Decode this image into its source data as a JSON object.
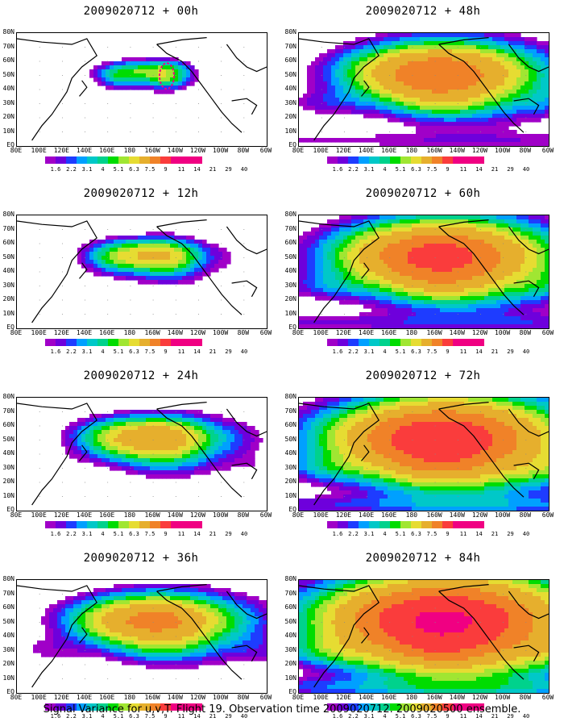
{
  "panels": [
    {
      "title": "2009020712 + 00h",
      "intensity": 0
    },
    {
      "title": "2009020712 + 48h",
      "intensity": 4
    },
    {
      "title": "2009020712 + 12h",
      "intensity": 1
    },
    {
      "title": "2009020712 + 60h",
      "intensity": 5
    },
    {
      "title": "2009020712 + 24h",
      "intensity": 2
    },
    {
      "title": "2009020712 + 72h",
      "intensity": 6
    },
    {
      "title": "2009020712 + 36h",
      "intensity": 3
    },
    {
      "title": "2009020712 + 84h",
      "intensity": 7
    }
  ],
  "latitude_labels": [
    "80N",
    "70N",
    "60N",
    "50N",
    "40N",
    "30N",
    "20N",
    "10N",
    "EQ"
  ],
  "longitude_labels": [
    "80E",
    "100E",
    "120E",
    "140E",
    "160E",
    "180",
    "160W",
    "140W",
    "120W",
    "100W",
    "80W",
    "60W"
  ],
  "colorbar": {
    "labels": [
      "1.6",
      "2.2",
      "3.1",
      "4",
      "5.1",
      "6.3",
      "7.5",
      "9",
      "11",
      "14",
      "21",
      "29",
      "40"
    ],
    "colors": [
      "#a000c8",
      "#6e00dc",
      "#1e3cff",
      "#00a0ff",
      "#00c8c8",
      "#00d28c",
      "#00dc00",
      "#a0e632",
      "#e6dc32",
      "#e6af2d",
      "#f08228",
      "#fa3c3c",
      "#f00082"
    ]
  },
  "footer": "Signal Variance for u,v,T. Flight 19. Observation time 2009020712. 2009020500 ensemble."
}
